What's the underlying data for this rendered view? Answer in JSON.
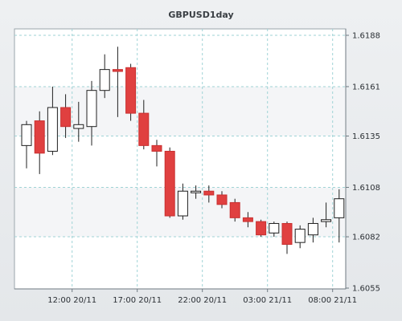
{
  "chart_data": {
    "type": "candlestick",
    "title": "GBPUSD1day",
    "y_ticks": [
      1.6055,
      1.6082,
      1.6108,
      1.6135,
      1.6161,
      1.6188
    ],
    "y_tick_labels": [
      "1.6055",
      "1.6082",
      "1.6108",
      "1.6135",
      "1.6161",
      "1.6188"
    ],
    "ylim": [
      1.6055,
      1.6188
    ],
    "x_tick_labels": [
      "12:00 20/11",
      "17:00 20/11",
      "22:00 20/11",
      "03:00 21/11",
      "08:00 21/11"
    ],
    "x_tick_candle_index": [
      3.5,
      8.5,
      13.5,
      18.5,
      23.5
    ],
    "grid": true,
    "colors": {
      "up_body": "#ffffff",
      "down_body": "#e04040",
      "wick": "#202020",
      "plot_bg": "#ffffff",
      "band": "#f4f5f7",
      "grid": "#9fd3d6"
    },
    "candles": [
      {
        "o": 1.613,
        "h": 1.6143,
        "l": 1.6118,
        "c": 1.6141
      },
      {
        "o": 1.6143,
        "h": 1.6148,
        "l": 1.6115,
        "c": 1.6126
      },
      {
        "o": 1.6127,
        "h": 1.6161,
        "l": 1.6125,
        "c": 1.615
      },
      {
        "o": 1.615,
        "h": 1.6157,
        "l": 1.6134,
        "c": 1.614
      },
      {
        "o": 1.6139,
        "h": 1.6153,
        "l": 1.6132,
        "c": 1.6141
      },
      {
        "o": 1.614,
        "h": 1.6164,
        "l": 1.613,
        "c": 1.6159
      },
      {
        "o": 1.6159,
        "h": 1.6178,
        "l": 1.6155,
        "c": 1.617
      },
      {
        "o": 1.617,
        "h": 1.6182,
        "l": 1.6145,
        "c": 1.6169
      },
      {
        "o": 1.6171,
        "h": 1.6173,
        "l": 1.6143,
        "c": 1.6147
      },
      {
        "o": 1.6147,
        "h": 1.6154,
        "l": 1.6128,
        "c": 1.613
      },
      {
        "o": 1.613,
        "h": 1.6133,
        "l": 1.6119,
        "c": 1.6127
      },
      {
        "o": 1.6127,
        "h": 1.6129,
        "l": 1.6092,
        "c": 1.6093
      },
      {
        "o": 1.6093,
        "h": 1.611,
        "l": 1.6091,
        "c": 1.6106
      },
      {
        "o": 1.6106,
        "h": 1.6109,
        "l": 1.6102,
        "c": 1.6106
      },
      {
        "o": 1.6106,
        "h": 1.6109,
        "l": 1.61,
        "c": 1.6104
      },
      {
        "o": 1.6104,
        "h": 1.6106,
        "l": 1.6097,
        "c": 1.6099
      },
      {
        "o": 1.61,
        "h": 1.6102,
        "l": 1.609,
        "c": 1.6092
      },
      {
        "o": 1.6092,
        "h": 1.6095,
        "l": 1.6087,
        "c": 1.609
      },
      {
        "o": 1.609,
        "h": 1.6091,
        "l": 1.6082,
        "c": 1.6083
      },
      {
        "o": 1.6084,
        "h": 1.609,
        "l": 1.6082,
        "c": 1.6089
      },
      {
        "o": 1.6089,
        "h": 1.609,
        "l": 1.6073,
        "c": 1.6078
      },
      {
        "o": 1.6079,
        "h": 1.6088,
        "l": 1.6076,
        "c": 1.6086
      },
      {
        "o": 1.6083,
        "h": 1.6092,
        "l": 1.6079,
        "c": 1.6089
      },
      {
        "o": 1.609,
        "h": 1.61,
        "l": 1.6087,
        "c": 1.6091
      },
      {
        "o": 1.6092,
        "h": 1.6107,
        "l": 1.6079,
        "c": 1.6102
      }
    ]
  }
}
